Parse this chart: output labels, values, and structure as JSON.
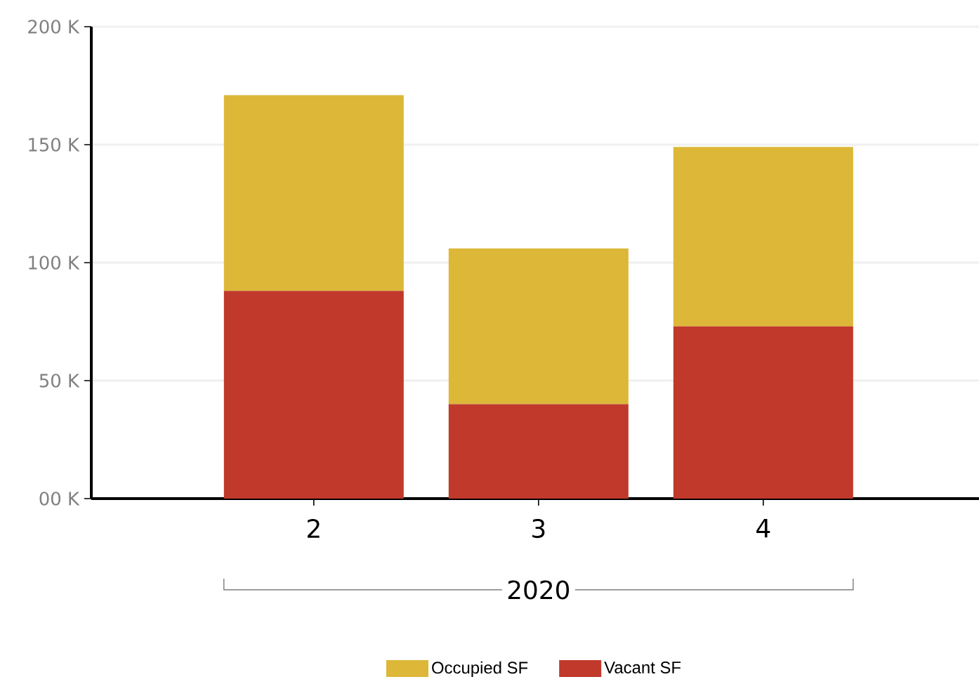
{
  "chart_data": {
    "type": "bar",
    "stacked": true,
    "categories": [
      "2",
      "3",
      "4"
    ],
    "xlabel": "2020",
    "series": [
      {
        "name": "Vacant SF",
        "color": "#c0392b",
        "values": [
          88,
          40,
          73
        ]
      },
      {
        "name": "Occupied SF",
        "color": "#dcb738",
        "values": [
          83,
          66,
          76
        ]
      }
    ],
    "ylim": [
      0,
      200
    ],
    "yticks": [
      {
        "value": 0,
        "label": "00 K"
      },
      {
        "value": 50,
        "label": "50 K"
      },
      {
        "value": 100,
        "label": "100 K"
      },
      {
        "value": 150,
        "label": "150 K"
      },
      {
        "value": 200,
        "label": "200 K"
      }
    ],
    "grid": "y",
    "legend": "bottom"
  }
}
